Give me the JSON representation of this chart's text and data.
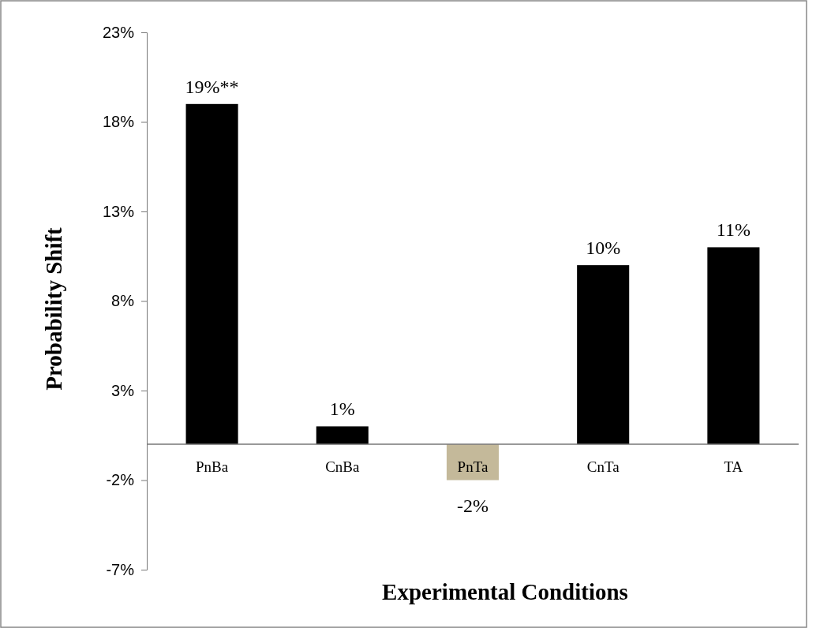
{
  "chart_data": {
    "type": "bar",
    "xlabel": "Experimental Conditions",
    "ylabel": "Probability Shift",
    "categories": [
      "PnBa",
      "CnBa",
      "PnTa",
      "CnTa",
      "TA"
    ],
    "values": [
      19,
      1,
      -2,
      10,
      11
    ],
    "colors": [
      "#000000",
      "#000000",
      "#c4b99a",
      "#000000",
      "#000000"
    ],
    "value_labels": [
      "19%**",
      "1%",
      "-2%",
      "10%",
      "11%"
    ],
    "ylim": [
      -7,
      23
    ],
    "yticks": [
      {
        "value": -7,
        "label": "-7%"
      },
      {
        "value": -2,
        "label": "-2%"
      },
      {
        "value": 3,
        "label": "3%"
      },
      {
        "value": 8,
        "label": "8%"
      },
      {
        "value": 13,
        "label": "13%"
      },
      {
        "value": 18,
        "label": "18%"
      },
      {
        "value": 23,
        "label": "23%"
      }
    ],
    "grid": false
  }
}
